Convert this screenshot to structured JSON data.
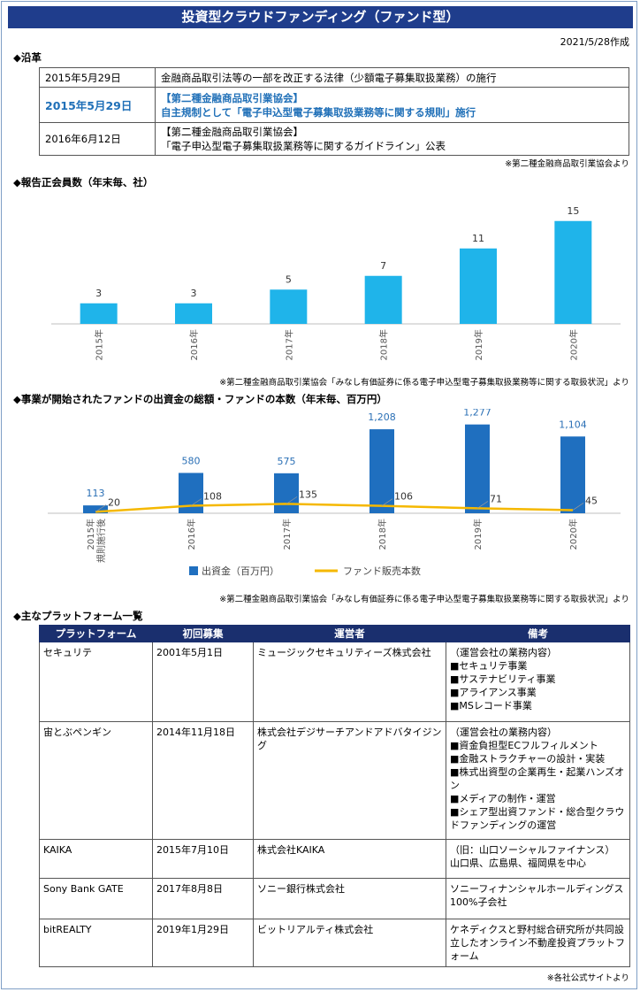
{
  "header": {
    "title": "投資型クラウドファンディング（ファンド型）",
    "date": "2021/5/28作成"
  },
  "history": {
    "heading": "◆沿革",
    "rows": [
      {
        "date": "2015年5月29日",
        "lines": [
          "金融商品取引法等の一部を改正する法律（少額電子募集取扱業務）の施行"
        ],
        "highlight": false
      },
      {
        "date": "2015年5月29日",
        "lines": [
          "【第二種金融商品取引業協会】",
          "自主規制として「電子申込型電子募集取扱業務等に関する規則」施行"
        ],
        "highlight": true
      },
      {
        "date": "2016年6月12日",
        "lines": [
          "【第二種金融商品取引業協会】",
          "「電子申込型電子募集取扱業務等に関するガイドライン」公表"
        ],
        "highlight": false
      }
    ],
    "source": "※第二種金融商品取引業協会より"
  },
  "members": {
    "heading": "◆報告正会員数（年末毎、社）",
    "source": "※第二種金融商品取引業協会「みなし有価証券に係る電子申込型電子募集取扱業務等に関する取扱状況」より"
  },
  "funds": {
    "heading": "◆事業が開始されたファンドの出資金の総額・ファンドの本数（年末毎、百万円）",
    "source": "※第二種金融商品取引業協会「みなし有価証券に係る電子申込型電子募集取扱業務等に関する取扱状況」より"
  },
  "chart_data": [
    {
      "type": "bar",
      "categories": [
        "2015年",
        "2016年",
        "2017年",
        "2018年",
        "2019年",
        "2020年"
      ],
      "values": [
        3,
        3,
        5,
        7,
        11,
        15
      ],
      "color": "#1fb4ea",
      "title": "報告正会員数（年末毎、社）",
      "ylim": [
        0,
        16
      ]
    },
    {
      "type": "bar",
      "categories": [
        "2015年規則施行後",
        "2016年",
        "2017年",
        "2018年",
        "2019年",
        "2020年"
      ],
      "series": [
        {
          "name": "出資金（百万円）",
          "type": "bar",
          "values": [
            113,
            580,
            575,
            1208,
            1277,
            1104
          ],
          "color": "#1f6fbf"
        },
        {
          "name": "ファンド販売本数",
          "type": "line",
          "values": [
            20,
            108,
            135,
            106,
            71,
            45
          ],
          "color": "#f5b800"
        }
      ],
      "title": "事業が開始されたファンドの出資金の総額・ファンドの本数（年末毎、百万円）",
      "ylim": [
        0,
        1400
      ]
    }
  ],
  "platforms": {
    "heading": "◆主なプラットフォーム一覧",
    "headers": [
      "プラットフォーム",
      "初回募集",
      "運営者",
      "備考"
    ],
    "rows": [
      {
        "name": "セキュリテ",
        "first": "2001年5月1日",
        "operator": "ミュージックセキュリティーズ株式会社",
        "remarks": [
          "（運営会社の業務内容）",
          "■セキュリテ事業",
          "■サステナビリティ事業",
          "■アライアンス事業",
          "■MSレコード事業"
        ]
      },
      {
        "name": "宙とぶペンギン",
        "first": "2014年11月18日",
        "operator": "株式会社デジサーチアンドアドバタイジング",
        "remarks": [
          "（運営会社の業務内容）",
          "■資金負担型ECフルフィルメント",
          "■金融ストラクチャーの設計・実装",
          "■株式出資型の企業再生・起業ハンズオン",
          "■メディアの制作・運営",
          "■シェア型出資ファンド・総合型クラウドファンディングの運営"
        ]
      },
      {
        "name": "KAIKA",
        "first": "2015年7月10日",
        "operator": "株式会社KAIKA",
        "remarks": [
          "（旧：山口ソーシャルファイナンス）",
          "山口県、広島県、福岡県を中心"
        ]
      },
      {
        "name": "Sony Bank GATE",
        "first": "2017年8月8日",
        "operator": "ソニー銀行株式会社",
        "remarks": [
          "ソニーフィナンシャルホールディングス100%子会社"
        ]
      },
      {
        "name": "bitREALTY",
        "first": "2019年1月29日",
        "operator": "ビットリアルティ株式会社",
        "remarks": [
          "ケネディクスと野村総合研究所が共同設立したオンライン不動産投資プラットフォーム"
        ]
      }
    ],
    "source": "※各社公式サイトより"
  }
}
